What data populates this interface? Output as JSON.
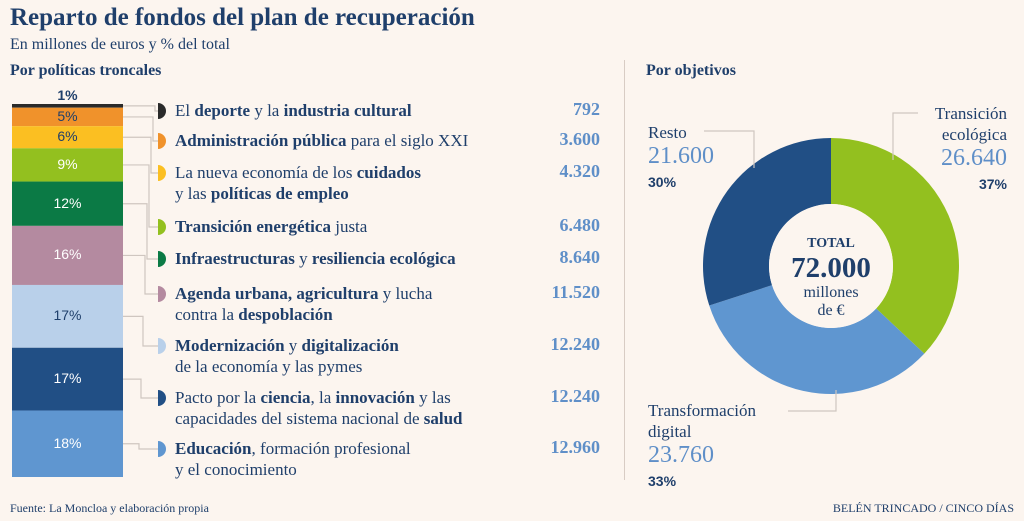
{
  "title": "Reparto de fondos del plan de recuperación",
  "subtitle": "En millones de euros y % del total",
  "source": "Fuente: La Moncloa y elaboración propia",
  "credit": "BELÉN TRINCADO / CINCO DÍAS",
  "colors": {
    "background": "#fcf5ef",
    "text": "#1f3f6b",
    "value": "#5f8fc8",
    "connector": "#cfc6c0"
  },
  "chart_data": [
    {
      "type": "bar",
      "title": "Por políticas troncales",
      "stacked": true,
      "items": [
        {
          "pct": "1%",
          "value": "792",
          "share": 1,
          "color": "#2a2a2a",
          "pct_color": "#1f3f6b",
          "label": [
            [
              {
                "t": "El "
              },
              {
                "t": "deporte",
                "b": true
              },
              {
                "t": " y la "
              },
              {
                "t": "industria cultural",
                "b": true
              }
            ]
          ]
        },
        {
          "pct": "5%",
          "value": "3.600",
          "share": 5,
          "color": "#f0922b",
          "pct_color": "#1f3f6b",
          "label": [
            [
              {
                "t": "Administración pública",
                "b": true
              },
              {
                "t": " para el siglo XXI"
              }
            ]
          ]
        },
        {
          "pct": "6%",
          "value": "4.320",
          "share": 6,
          "color": "#fbbf22",
          "pct_color": "#1f3f6b",
          "label": [
            [
              {
                "t": "La nueva economía de los "
              },
              {
                "t": "cuidados",
                "b": true
              }
            ],
            [
              {
                "t": "y las "
              },
              {
                "t": "políticas de empleo",
                "b": true
              }
            ]
          ]
        },
        {
          "pct": "9%",
          "value": "6.480",
          "share": 9,
          "color": "#93c01f",
          "pct_color": "#ffffff",
          "label": [
            [
              {
                "t": "Transición energética",
                "b": true
              },
              {
                "t": " justa"
              }
            ]
          ]
        },
        {
          "pct": "12%",
          "value": "8.640",
          "share": 12,
          "color": "#0b7a45",
          "pct_color": "#ffffff",
          "label": [
            [
              {
                "t": "Infraestructuras",
                "b": true
              },
              {
                "t": " y "
              },
              {
                "t": "resiliencia ecológica",
                "b": true
              }
            ]
          ]
        },
        {
          "pct": "16%",
          "value": "11.520",
          "share": 16,
          "color": "#b48aa0",
          "pct_color": "#ffffff",
          "label": [
            [
              {
                "t": "Agenda urbana, agricultura",
                "b": true
              },
              {
                "t": " y lucha"
              }
            ],
            [
              {
                "t": "contra la "
              },
              {
                "t": "despoblación",
                "b": true
              }
            ]
          ]
        },
        {
          "pct": "17%",
          "value": "12.240",
          "share": 17,
          "color": "#b9d0ea",
          "pct_color": "#1f3f6b",
          "label": [
            [
              {
                "t": "Modernización",
                "b": true
              },
              {
                "t": " y "
              },
              {
                "t": "digitalización",
                "b": true
              }
            ],
            [
              {
                "t": "de la economía y las pymes"
              }
            ]
          ]
        },
        {
          "pct": "17%",
          "value": "12.240",
          "share": 17,
          "color": "#214f85",
          "pct_color": "#ffffff",
          "label": [
            [
              {
                "t": "Pacto por la "
              },
              {
                "t": "ciencia",
                "b": true
              },
              {
                "t": ", la "
              },
              {
                "t": "innovación",
                "b": true
              },
              {
                "t": " y las"
              }
            ],
            [
              {
                "t": "capacidades del sistema nacional de "
              },
              {
                "t": "salud",
                "b": true
              }
            ]
          ]
        },
        {
          "pct": "18%",
          "value": "12.960",
          "share": 18,
          "color": "#5f96d0",
          "pct_color": "#ffffff",
          "label": [
            [
              {
                "t": "Educación",
                "b": true
              },
              {
                "t": ", formación profesional"
              }
            ],
            [
              {
                "t": "y el conocimiento"
              }
            ]
          ]
        }
      ]
    },
    {
      "type": "pie",
      "title": "Por objetivos",
      "donut": true,
      "center": {
        "label": "TOTAL",
        "value": "72.000",
        "unit_line1": "millones",
        "unit_line2": "de €"
      },
      "slices": [
        {
          "name_lines": [
            "Transición",
            "ecológica"
          ],
          "value": 26640,
          "value_text": "26.640",
          "pct": "37%",
          "color": "#93c01f"
        },
        {
          "name_lines": [
            "Transformación",
            "digital"
          ],
          "value": 23760,
          "value_text": "23.760",
          "pct": "33%",
          "color": "#5f96d0"
        },
        {
          "name_lines": [
            "Resto"
          ],
          "value": 21600,
          "value_text": "21.600",
          "pct": "30%",
          "color": "#214f85"
        }
      ]
    }
  ]
}
